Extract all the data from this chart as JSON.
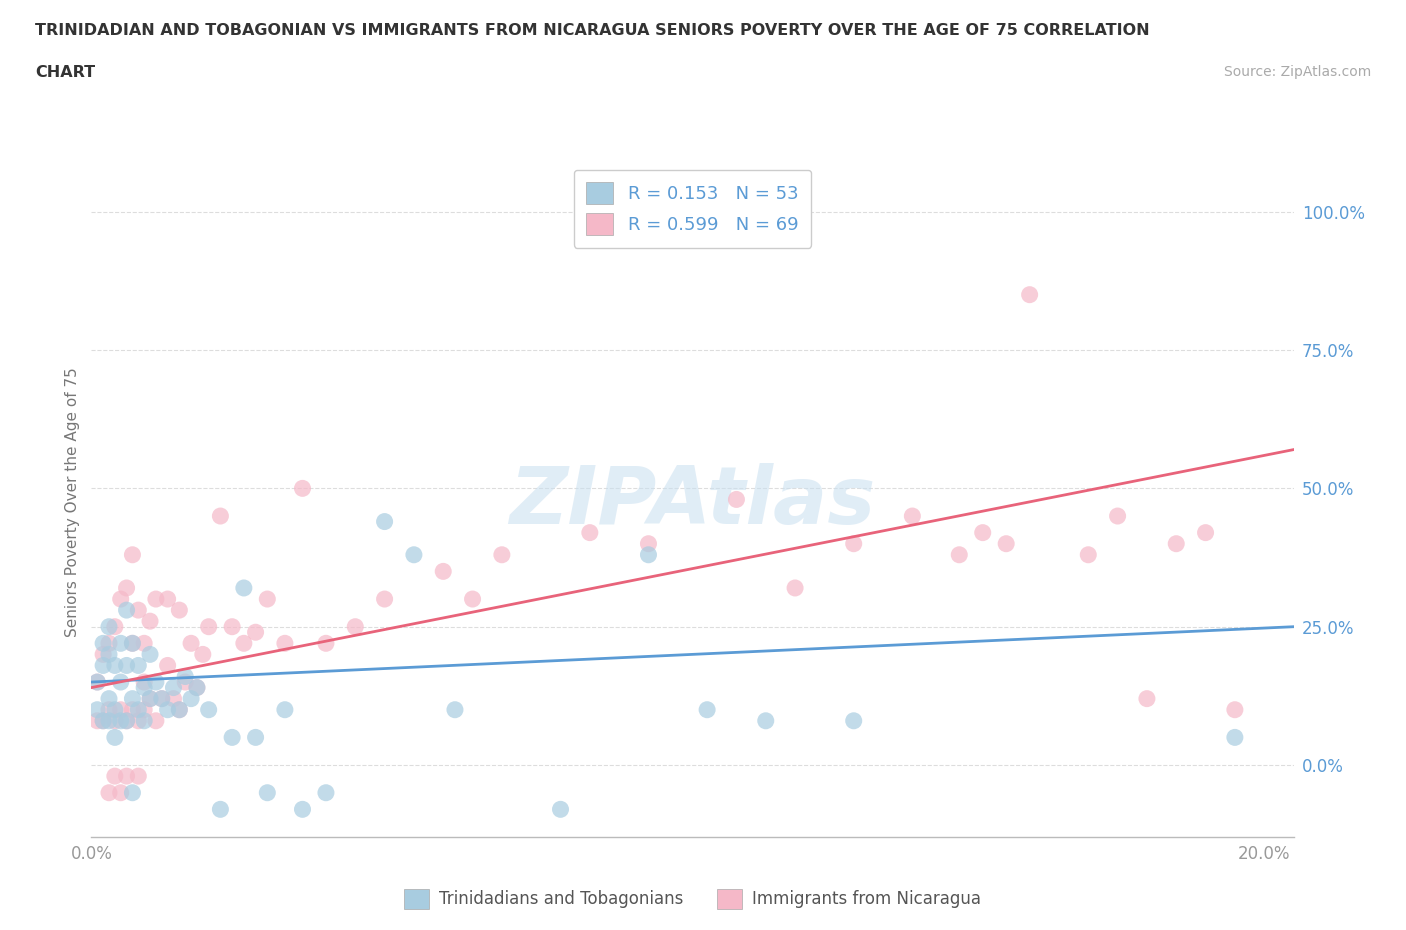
{
  "title_line1": "TRINIDADIAN AND TOBAGONIAN VS IMMIGRANTS FROM NICARAGUA SENIORS POVERTY OVER THE AGE OF 75 CORRELATION",
  "title_line2": "CHART",
  "source": "Source: ZipAtlas.com",
  "ylabel": "Seniors Poverty Over the Age of 75",
  "xlim": [
    0.0,
    0.205
  ],
  "ylim": [
    -0.13,
    1.08
  ],
  "xticks": [
    0.0,
    0.025,
    0.05,
    0.075,
    0.1,
    0.125,
    0.15,
    0.175,
    0.2
  ],
  "xtick_labels": [
    "0.0%",
    "",
    "",
    "",
    "",
    "",
    "",
    "",
    "20.0%"
  ],
  "yticks": [
    0.0,
    0.25,
    0.5,
    0.75,
    1.0
  ],
  "ytick_labels": [
    "0.0%",
    "25.0%",
    "50.0%",
    "75.0%",
    "100.0%"
  ],
  "blue_color": "#a8cce0",
  "pink_color": "#f5b8c8",
  "blue_line_color": "#5b9bd5",
  "pink_line_color": "#e8637a",
  "label_blue": "Trinidadians and Tobagonians",
  "label_pink": "Immigrants from Nicaragua",
  "blue_R": 0.153,
  "blue_N": 53,
  "pink_R": 0.599,
  "pink_N": 69,
  "blue_scatter_x": [
    0.001,
    0.001,
    0.002,
    0.002,
    0.002,
    0.003,
    0.003,
    0.003,
    0.003,
    0.004,
    0.004,
    0.004,
    0.005,
    0.005,
    0.005,
    0.006,
    0.006,
    0.006,
    0.007,
    0.007,
    0.007,
    0.008,
    0.008,
    0.009,
    0.009,
    0.01,
    0.01,
    0.011,
    0.012,
    0.013,
    0.014,
    0.015,
    0.016,
    0.017,
    0.018,
    0.02,
    0.022,
    0.024,
    0.026,
    0.028,
    0.03,
    0.033,
    0.036,
    0.04,
    0.05,
    0.055,
    0.062,
    0.08,
    0.095,
    0.105,
    0.115,
    0.13,
    0.195
  ],
  "blue_scatter_y": [
    0.1,
    0.15,
    0.08,
    0.22,
    0.18,
    0.08,
    0.12,
    0.2,
    0.25,
    0.1,
    0.18,
    0.05,
    0.08,
    0.15,
    0.22,
    0.08,
    0.18,
    0.28,
    0.12,
    0.22,
    -0.05,
    0.1,
    0.18,
    0.08,
    0.14,
    0.12,
    0.2,
    0.15,
    0.12,
    0.1,
    0.14,
    0.1,
    0.16,
    0.12,
    0.14,
    0.1,
    -0.08,
    0.05,
    0.32,
    0.05,
    -0.05,
    0.1,
    -0.08,
    -0.05,
    0.44,
    0.38,
    0.1,
    -0.08,
    0.38,
    0.1,
    0.08,
    0.08,
    0.05
  ],
  "pink_scatter_x": [
    0.001,
    0.001,
    0.002,
    0.002,
    0.003,
    0.003,
    0.003,
    0.004,
    0.004,
    0.004,
    0.005,
    0.005,
    0.005,
    0.006,
    0.006,
    0.006,
    0.007,
    0.007,
    0.007,
    0.008,
    0.008,
    0.008,
    0.009,
    0.009,
    0.009,
    0.01,
    0.01,
    0.011,
    0.011,
    0.012,
    0.013,
    0.013,
    0.014,
    0.015,
    0.015,
    0.016,
    0.017,
    0.018,
    0.019,
    0.02,
    0.022,
    0.024,
    0.026,
    0.028,
    0.03,
    0.033,
    0.036,
    0.04,
    0.045,
    0.05,
    0.06,
    0.065,
    0.07,
    0.085,
    0.095,
    0.11,
    0.12,
    0.13,
    0.14,
    0.148,
    0.152,
    0.156,
    0.16,
    0.17,
    0.175,
    0.18,
    0.185,
    0.19,
    0.195
  ],
  "pink_scatter_y": [
    0.08,
    0.15,
    0.08,
    0.2,
    0.1,
    0.22,
    -0.05,
    0.08,
    0.25,
    -0.02,
    0.1,
    0.3,
    -0.05,
    0.08,
    0.32,
    -0.02,
    0.1,
    0.22,
    0.38,
    0.08,
    0.28,
    -0.02,
    0.1,
    0.22,
    0.15,
    0.12,
    0.26,
    0.08,
    0.3,
    0.12,
    0.18,
    0.3,
    0.12,
    0.1,
    0.28,
    0.15,
    0.22,
    0.14,
    0.2,
    0.25,
    0.45,
    0.25,
    0.22,
    0.24,
    0.3,
    0.22,
    0.5,
    0.22,
    0.25,
    0.3,
    0.35,
    0.3,
    0.38,
    0.42,
    0.4,
    0.48,
    0.32,
    0.4,
    0.45,
    0.38,
    0.42,
    0.4,
    0.85,
    0.38,
    0.45,
    0.12,
    0.4,
    0.42,
    0.1
  ],
  "watermark_text": "ZIPAtlas",
  "background_color": "#ffffff",
  "grid_color": "#dddddd",
  "title_color": "#333333",
  "source_color": "#aaaaaa",
  "ylabel_color": "#777777",
  "xtick_color": "#999999",
  "ytick_color": "#5b9bd5"
}
